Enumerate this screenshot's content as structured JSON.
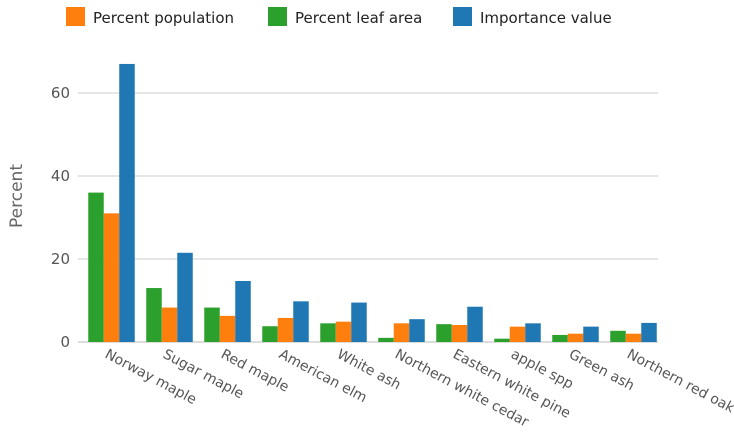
{
  "chart_data": {
    "type": "bar",
    "categories": [
      "Norway maple",
      "Sugar maple",
      "Red maple",
      "American elm",
      "White ash",
      "Northern white cedar",
      "Eastern white pine",
      "apple spp",
      "Green ash",
      "Northern red oak"
    ],
    "series": [
      {
        "name": "Percent leaf area",
        "color": "#2ca02c",
        "values": [
          36,
          13,
          8.3,
          3.8,
          4.5,
          1.0,
          4.3,
          0.8,
          1.7,
          2.7
        ]
      },
      {
        "name": "Percent population",
        "color": "#ff7f0e",
        "values": [
          31,
          8.3,
          6.3,
          5.8,
          4.9,
          4.5,
          4.1,
          3.7,
          2.0,
          2.0
        ]
      },
      {
        "name": "Importance value",
        "color": "#1f77b4",
        "values": [
          67,
          21.5,
          14.7,
          9.8,
          9.5,
          5.5,
          8.5,
          4.5,
          3.7,
          4.6
        ]
      }
    ],
    "legend": [
      {
        "name": "Percent population",
        "color": "#ff7f0e"
      },
      {
        "name": "Percent leaf area",
        "color": "#2ca02c"
      },
      {
        "name": "Importance value",
        "color": "#1f77b4"
      }
    ],
    "legend_position": "top-left",
    "ylabel": "Percent",
    "xlabel": "",
    "yticks": [
      "0",
      "20",
      "40",
      "60"
    ],
    "ylim": [
      0,
      70
    ],
    "grid": true
  }
}
